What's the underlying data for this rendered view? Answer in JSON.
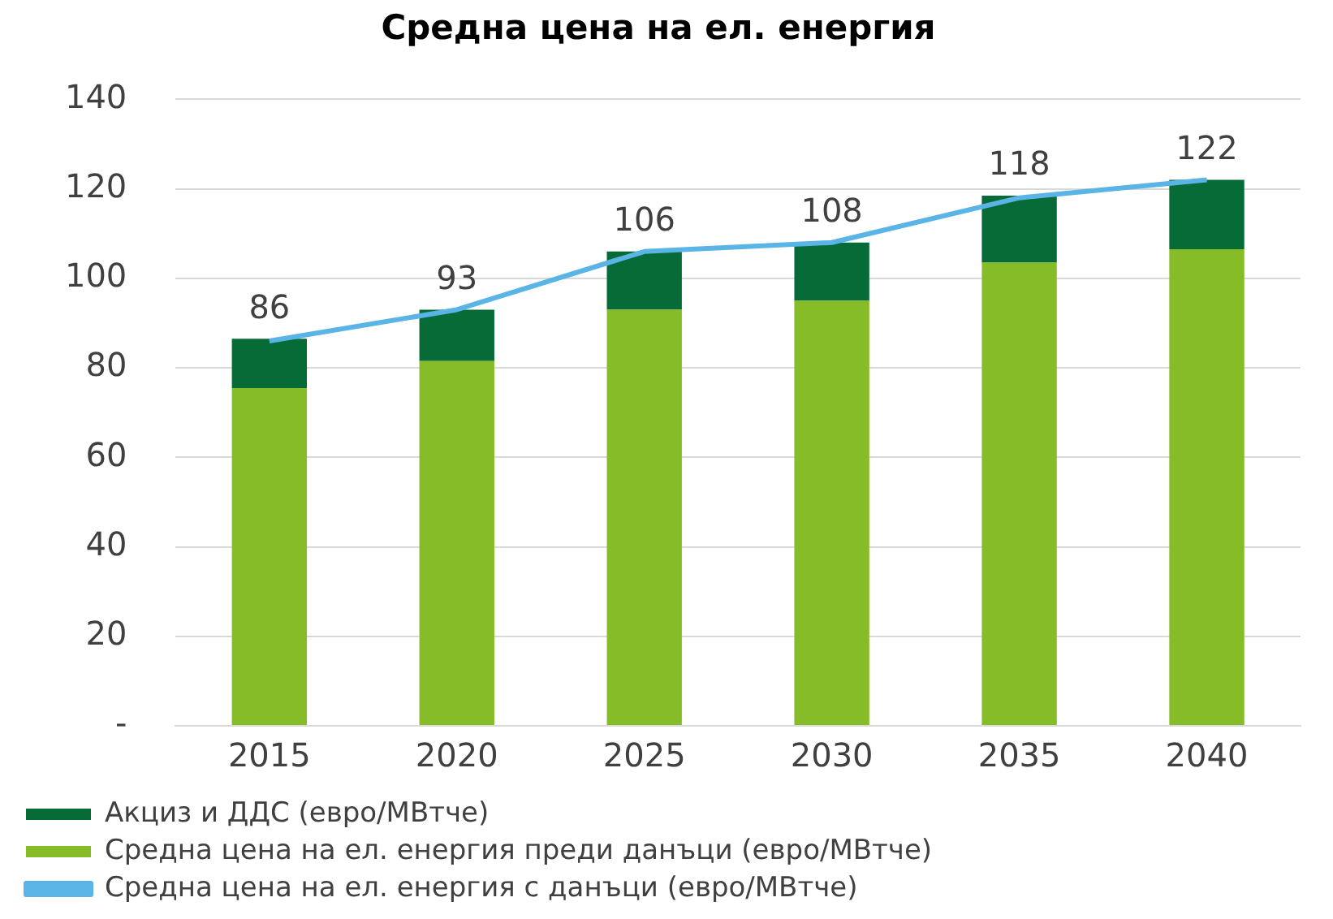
{
  "chart_data": {
    "type": "bar",
    "title": "Средна цена на ел. енергия",
    "categories": [
      "2015",
      "2020",
      "2025",
      "2030",
      "2035",
      "2040"
    ],
    "stacked": true,
    "series": [
      {
        "name": "Средна цена на ел. енергия преди данъци (евро/МВтче)",
        "color": "#86bc28",
        "values": [
          75.5,
          81.5,
          93,
          95,
          103.5,
          106.5
        ]
      },
      {
        "name": "Акциз и ДДС (евро/МВтче)",
        "color": "#076b38",
        "values": [
          11,
          11.5,
          13,
          13,
          15,
          15.5
        ]
      },
      {
        "name": "Средна цена на ел. енергия с данъци (евро/МВтче)",
        "type": "line",
        "color": "#5ab4e6",
        "values": [
          86,
          93,
          106,
          108,
          118,
          122
        ]
      }
    ],
    "totals": [
      "86",
      "93",
      "106",
      "108",
      "118",
      "122"
    ],
    "ylim": [
      0,
      140
    ],
    "yticks": [
      {
        "value": 0,
        "label": "-"
      },
      20,
      40,
      60,
      80,
      100,
      120,
      140
    ],
    "grid": "y",
    "legend": "bottom",
    "marker": "none"
  }
}
